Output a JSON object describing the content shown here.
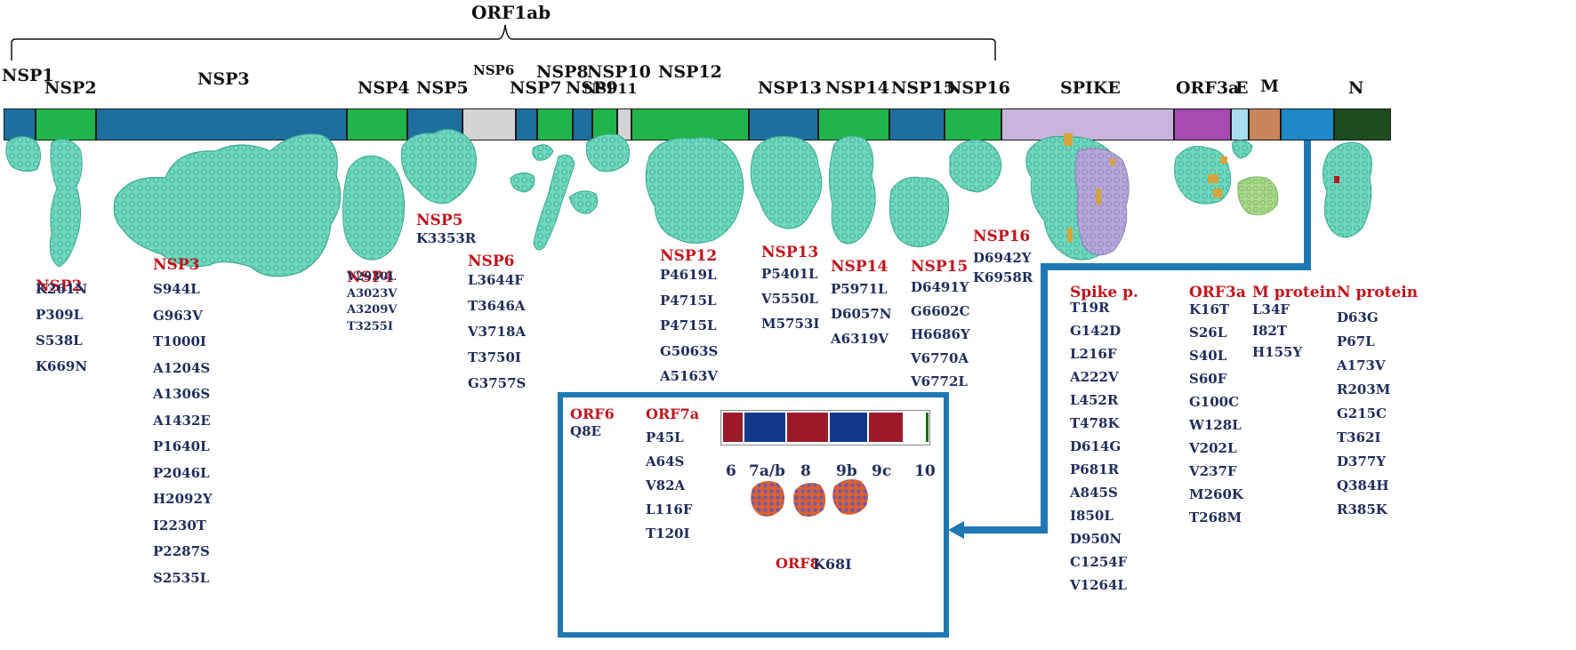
{
  "header": {
    "title": "ORF1ab"
  },
  "segments": [
    {
      "key": "nsp1",
      "label": "NSP1",
      "color": "#1e6fa0"
    },
    {
      "key": "nsp2",
      "label": "NSP2",
      "color": "#1fb54a"
    },
    {
      "key": "nsp3",
      "label": "NSP3",
      "color": "#1e6fa0"
    },
    {
      "key": "nsp4",
      "label": "NSP4",
      "color": "#1fb54a"
    },
    {
      "key": "nsp5",
      "label": "NSP5",
      "color": "#1e6fa0"
    },
    {
      "key": "nsp6",
      "label": "NSP6",
      "color": "#d4d4d4"
    },
    {
      "key": "nsp7",
      "label": "NSP7",
      "color": "#1e6fa0"
    },
    {
      "key": "nsp8",
      "label": "NSP8",
      "color": "#1fb54a"
    },
    {
      "key": "nsp9",
      "label": "NSP9",
      "color": "#1e6fa0"
    },
    {
      "key": "nsp10",
      "label": "NSP10",
      "color": "#1fb54a"
    },
    {
      "key": "nsp11",
      "label": "NSP11",
      "color": "#d4d4d4"
    },
    {
      "key": "nsp12",
      "label": "NSP12",
      "color": "#1fb54a"
    },
    {
      "key": "nsp13",
      "label": "NSP13",
      "color": "#1e6fa0"
    },
    {
      "key": "nsp14",
      "label": "NSP14",
      "color": "#1fb54a"
    },
    {
      "key": "nsp15",
      "label": "NSP15",
      "color": "#1e6fa0"
    },
    {
      "key": "nsp16",
      "label": "NSP16",
      "color": "#1fb54a"
    },
    {
      "key": "spike",
      "label": "SPIKE",
      "color": "#c8b4dc"
    },
    {
      "key": "orf3a",
      "label": "ORF3a",
      "color": "#a54ab0"
    },
    {
      "key": "e",
      "label": "E",
      "color": "#a8dcee"
    },
    {
      "key": "m",
      "label": "M",
      "color": "#c8855a"
    },
    {
      "key": "unlabeled",
      "label": "",
      "color": "#1e88c8"
    },
    {
      "key": "n",
      "label": "N",
      "color": "#1d4d1d"
    }
  ],
  "groups": {
    "nsp2": {
      "title": "NSP2",
      "mutations": [
        "K261N",
        "P309L",
        "S538L",
        "K669N"
      ]
    },
    "nsp3": {
      "title": "NSP3",
      "mutations": [
        "S944L",
        "G963V",
        "T1000I",
        "A1204S",
        "A1306S",
        "A1432E",
        "P1640L",
        "P2046L",
        "H2092Y",
        "I2230T",
        "P2287S",
        "S2535L"
      ]
    },
    "nsp4": {
      "title": "NSP4",
      "mutations": [
        "V2930L",
        "A3023V",
        "A3209V",
        "T3255I"
      ]
    },
    "nsp5": {
      "title": "NSP5",
      "mutations": [
        "K3353R"
      ]
    },
    "nsp6": {
      "title": "NSP6",
      "mutations": [
        "L3644F",
        "T3646A",
        "V3718A",
        "T3750I",
        "G3757S"
      ]
    },
    "nsp12": {
      "title": "NSP12",
      "mutations": [
        "P4619L",
        "P4715L",
        "P4715L",
        "G5063S",
        "A5163V"
      ]
    },
    "nsp13": {
      "title": "NSP13",
      "mutations": [
        "P5401L",
        "V5550L",
        "M5753I"
      ]
    },
    "nsp14": {
      "title": "NSP14",
      "mutations": [
        "P5971L",
        "D6057N",
        "A6319V"
      ]
    },
    "nsp15": {
      "title": "NSP15",
      "mutations": [
        "D6491Y",
        "G6602C",
        "H6686Y",
        "V6770A",
        "V6772L"
      ]
    },
    "nsp16": {
      "title": "NSP16",
      "mutations": [
        "D6942Y",
        "K6958R"
      ]
    },
    "spike": {
      "title": "Spike p.",
      "mutations": [
        "T19R",
        "G142D",
        "L216F",
        "A222V",
        "L452R",
        "T478K",
        "D614G",
        "P681R",
        "A845S",
        "I850L",
        "D950N",
        "C1254F",
        "V1264L"
      ]
    },
    "orf3a": {
      "title": "ORF3a",
      "mutations": [
        "K16T",
        "S26L",
        "S40L",
        "S60F",
        "G100C",
        "W128L",
        "V202L",
        "V237F",
        "M260K",
        "T268M"
      ]
    },
    "mprotein": {
      "title": "M protein",
      "mutations": [
        "L34F",
        "I82T",
        "H155Y"
      ]
    },
    "nprotein": {
      "title": "N protein",
      "mutations": [
        "D63G",
        "P67L",
        "A173V",
        "R203M",
        "G215C",
        "T362I",
        "D377Y",
        "Q384H",
        "R385K"
      ]
    },
    "orf6": {
      "title": "ORF6",
      "mutations": [
        "Q8E"
      ]
    },
    "orf7a": {
      "title": "ORF7a",
      "mutations": [
        "P45L",
        "A64S",
        "V82A",
        "L116F",
        "T120I"
      ]
    },
    "orf8": {
      "title": "ORF8",
      "mutation": "K68I"
    }
  },
  "inset": {
    "bar_labels": [
      "6",
      "7a/b",
      "8",
      "9b",
      "9c",
      "10"
    ],
    "bar_colors": [
      "#9c1a2a",
      "#12398a",
      "#9c1a2a",
      "#12398a",
      "#9c1a2a",
      "#ffffff",
      "#1a6b1a"
    ]
  },
  "colors": {
    "structure": "#6fd9c0",
    "structure_dark": "#3ea991",
    "lavender": "#b7a8dc",
    "gold": "#d8a43a",
    "light_green": "#a8d88a",
    "connector": "#1f78b4",
    "red_label": "#c0141c",
    "navy_label": "#1f2d5c"
  }
}
